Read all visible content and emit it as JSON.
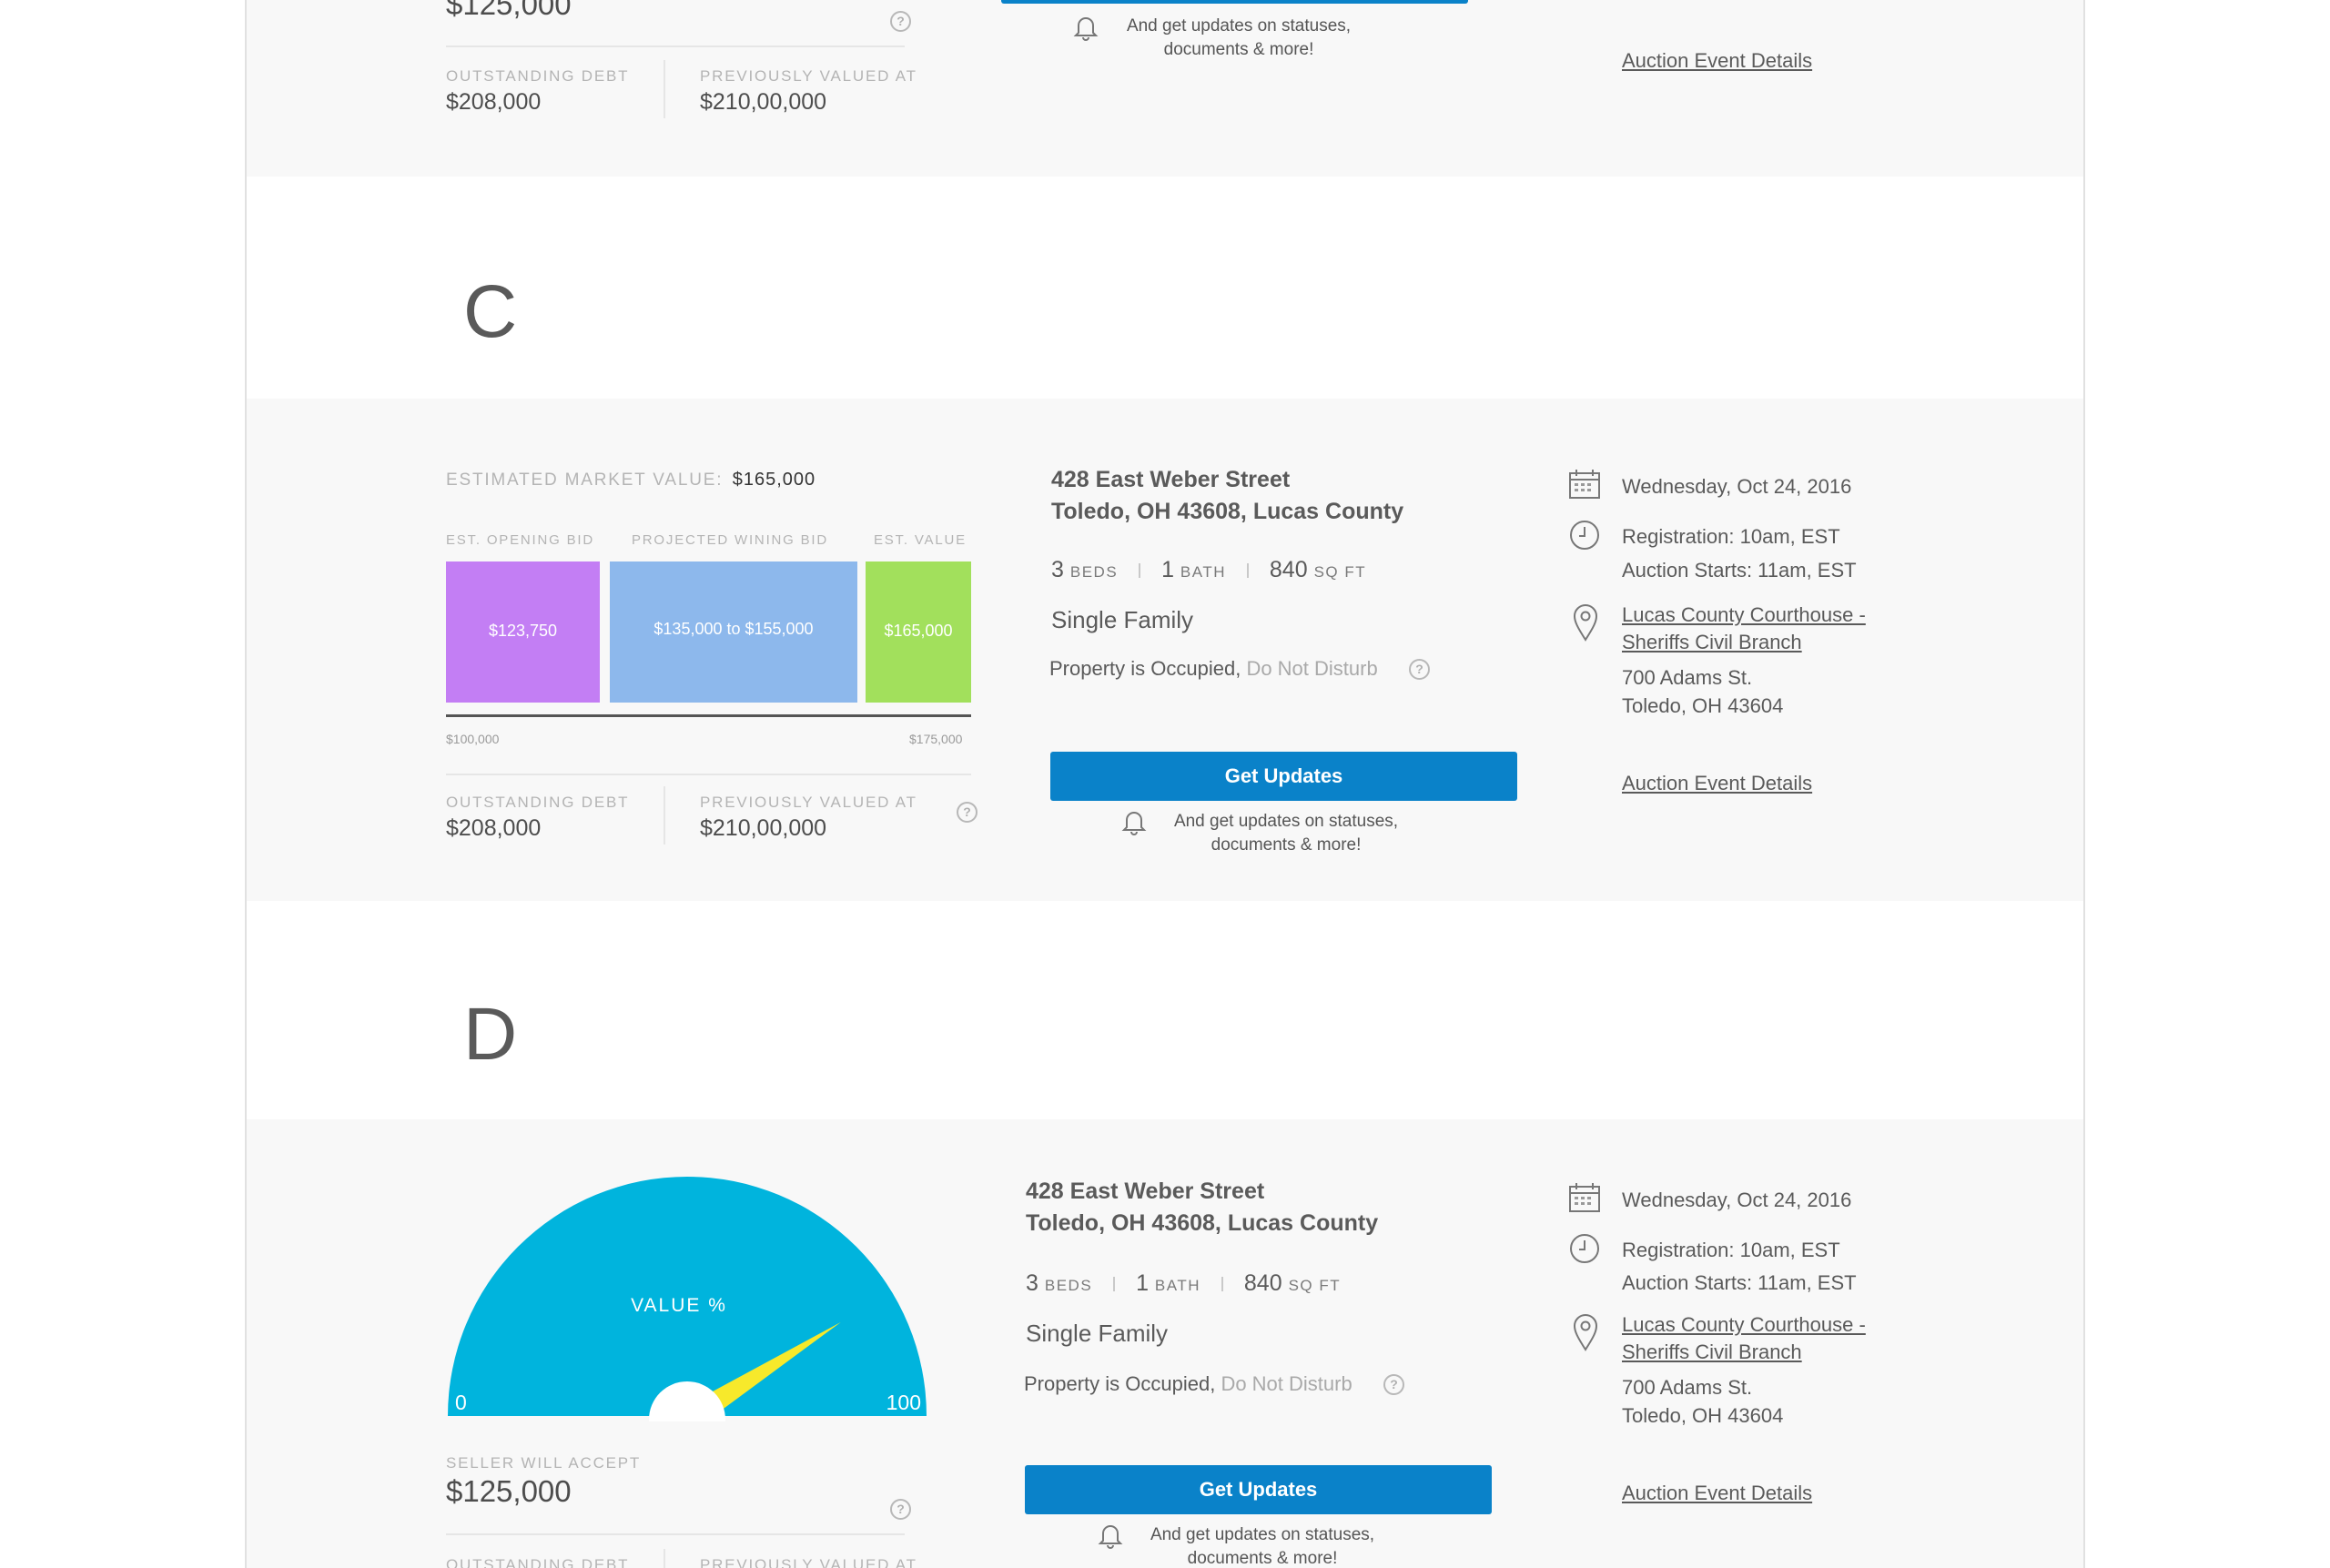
{
  "section_b": {
    "seller_accept_value": "$125,000",
    "outstanding_debt_label": "OUTSTANDING DEBT",
    "outstanding_debt_value": "$208,000",
    "prev_valued_label": "PREVIOUSLY VALUED AT",
    "prev_valued_value": "$210,00,000",
    "updates_note_line1": "And get updates on statuses,",
    "updates_note_line2": "documents & more!",
    "event_details_link": "Auction Event Details"
  },
  "section_c": {
    "letter": "C",
    "market_value_label": "ESTIMATED MARKET VALUE:",
    "market_value": "$165,000",
    "chart_headers": {
      "opening": "EST. OPENING BID",
      "projected": "PROJECTED WINING BID",
      "est_value": "EST. VALUE"
    },
    "axis_min_label": "$100,000",
    "axis_max_label": "$175,000",
    "outstanding_debt_label": "OUTSTANDING DEBT",
    "outstanding_debt_value": "$208,000",
    "prev_valued_label": "PREVIOUSLY VALUED AT",
    "prev_valued_value": "$210,00,000",
    "address_line1": "428 East Weber Street",
    "address_line2": "Toledo, OH 43608, Lucas County",
    "beds_count": "3",
    "beds_unit": "BEDS",
    "bath_count": "1",
    "bath_unit": "BATH",
    "sqft_count": "840",
    "sqft_unit": "SQ FT",
    "property_type": "Single Family",
    "occupancy": "Property is Occupied,",
    "do_not_disturb": "Do Not Disturb",
    "button_label": "Get Updates",
    "updates_note_line1": "And get updates on statuses,",
    "updates_note_line2": "documents & more!",
    "date": "Wednesday, Oct 24, 2016",
    "registration": "Registration:  10am, EST",
    "auction_starts": "Auction Starts:  11am, EST",
    "venue_line1": "Lucas County Courthouse -",
    "venue_line2": "Sheriffs Civil Branch",
    "street": "700 Adams St.",
    "city": "Toledo, OH 43604",
    "event_details_link": "Auction Event Details"
  },
  "chart_data": {
    "type": "bar",
    "title": "",
    "xlim": [
      100000,
      175000
    ],
    "x_tick_labels": [
      "$100,000",
      "$175,000"
    ],
    "bars": [
      {
        "category": "EST. OPENING BID",
        "label": "$123,750",
        "value": 123750,
        "color": "#c37ef4"
      },
      {
        "category": "PROJECTED WINING BID",
        "label": "$135,000 to $155,000",
        "range": [
          135000,
          155000
        ],
        "color": "#8db8ec"
      },
      {
        "category": "EST. VALUE",
        "label": "$165,000",
        "value": 165000,
        "color": "#a2e05c"
      }
    ]
  },
  "section_d": {
    "letter": "D",
    "gauge_label": "VALUE %",
    "gauge_min": "0",
    "gauge_max": "100",
    "gauge_value_fraction": 0.82,
    "gauge_color": "#00b4dd",
    "needle_color": "#f7e92b",
    "seller_accept_label": "SELLER WILL ACCEPT",
    "seller_accept_value": "$125,000",
    "outstanding_debt_label": "OUTSTANDING DEBT",
    "prev_valued_label": "PREVIOUSLY VALUED AT",
    "address_line1": "428 East Weber Street",
    "address_line2": "Toledo, OH 43608, Lucas County",
    "beds_count": "3",
    "beds_unit": "BEDS",
    "bath_count": "1",
    "bath_unit": "BATH",
    "sqft_count": "840",
    "sqft_unit": "SQ FT",
    "property_type": "Single Family",
    "occupancy": "Property is Occupied,",
    "do_not_disturb": "Do Not Disturb",
    "button_label": "Get Updates",
    "updates_note_line1": "And get updates on statuses,",
    "updates_note_line2": "documents & more!",
    "date": "Wednesday, Oct 24, 2016",
    "registration": "Registration:  10am, EST",
    "auction_starts": "Auction Starts:  11am, EST",
    "venue_line1": "Lucas County Courthouse -",
    "venue_line2": "Sheriffs Civil Branch",
    "street": "700 Adams St.",
    "city": "Toledo, OH 43604",
    "event_details_link": "Auction Event Details"
  },
  "icons": {
    "help": "?",
    "bell": "bell-icon",
    "calendar": "calendar-icon",
    "clock": "clock-icon",
    "pin": "map-pin-icon"
  },
  "colors": {
    "button": "#0a82c9",
    "section_bg": "#f8f8f8"
  }
}
